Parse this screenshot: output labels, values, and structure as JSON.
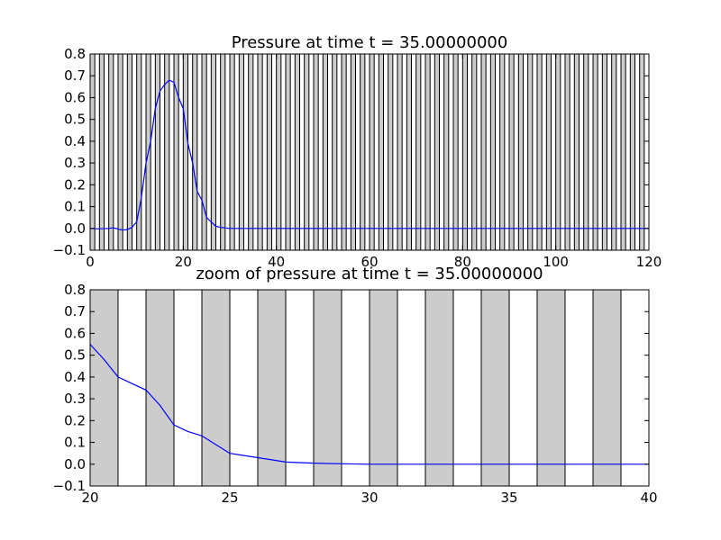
{
  "chart_data": [
    {
      "type": "line",
      "title": "Pressure at time t =    35.00000000",
      "xlabel": "",
      "ylabel": "",
      "xlim": [
        0,
        120
      ],
      "ylim": [
        -0.1,
        0.8
      ],
      "xticks": [
        0,
        20,
        40,
        60,
        80,
        100,
        120
      ],
      "yticks": [
        -0.1,
        0.0,
        0.1,
        0.2,
        0.3,
        0.4,
        0.5,
        0.6,
        0.7,
        0.8
      ],
      "xtick_labels": [
        "0",
        "20",
        "40",
        "60",
        "80",
        "100",
        "120"
      ],
      "ytick_labels": [
        "−0.1",
        "0.0",
        "0.1",
        "0.2",
        "0.3",
        "0.4",
        "0.5",
        "0.6",
        "0.7",
        "0.8"
      ],
      "shaded_band_interval": 1,
      "grid": false,
      "series": [
        {
          "color": "#0000ff",
          "x": [
            0,
            2,
            4,
            5,
            6,
            7,
            8,
            9,
            10,
            11,
            12,
            13,
            14,
            15,
            16,
            17,
            18,
            19,
            20,
            21,
            22,
            23,
            24,
            25,
            26,
            27,
            28,
            30,
            40,
            60,
            80,
            100,
            120
          ],
          "y": [
            0.0,
            -0.002,
            0.0,
            0.003,
            -0.003,
            -0.008,
            -0.005,
            0.005,
            0.03,
            0.14,
            0.3,
            0.4,
            0.55,
            0.63,
            0.66,
            0.68,
            0.67,
            0.6,
            0.55,
            0.39,
            0.3,
            0.17,
            0.13,
            0.05,
            0.03,
            0.01,
            0.005,
            0.0,
            0.0,
            0.0,
            0.0,
            0.0,
            0.0
          ]
        }
      ]
    },
    {
      "type": "line",
      "title": "zoom of pressure at time t =    35.00000000",
      "xlabel": "",
      "ylabel": "",
      "xlim": [
        20,
        40
      ],
      "ylim": [
        -0.1,
        0.8
      ],
      "xticks": [
        20,
        25,
        30,
        35,
        40
      ],
      "yticks": [
        -0.1,
        0.0,
        0.1,
        0.2,
        0.3,
        0.4,
        0.5,
        0.6,
        0.7,
        0.8
      ],
      "xtick_labels": [
        "20",
        "25",
        "30",
        "35",
        "40"
      ],
      "ytick_labels": [
        "−0.1",
        "0.0",
        "0.1",
        "0.2",
        "0.3",
        "0.4",
        "0.5",
        "0.6",
        "0.7",
        "0.8"
      ],
      "shaded_band_interval": 1,
      "grid": false,
      "series": [
        {
          "color": "#0000ff",
          "x": [
            20,
            20.5,
            21,
            21.5,
            22,
            22.5,
            23,
            23.5,
            24,
            24.5,
            25,
            25.5,
            26,
            26.5,
            27,
            28,
            29,
            30,
            35,
            40
          ],
          "y": [
            0.55,
            0.48,
            0.4,
            0.37,
            0.34,
            0.27,
            0.18,
            0.15,
            0.13,
            0.09,
            0.05,
            0.04,
            0.03,
            0.02,
            0.01,
            0.005,
            0.002,
            0.0,
            0.0,
            0.0
          ]
        }
      ]
    }
  ]
}
